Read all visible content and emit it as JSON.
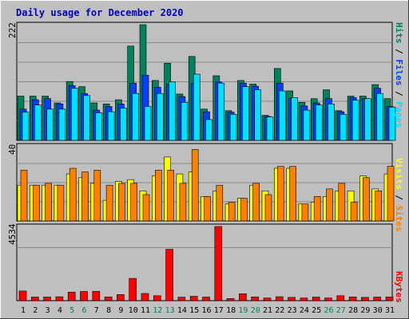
{
  "title": "Daily usage for December 2020",
  "colors": {
    "background": "#C0C0C0",
    "plot_bg": "#BFBFBF",
    "hits": "#00805C",
    "files": "#0040FF",
    "pages": "#00E0FF",
    "visits": "#FFFF00",
    "sites": "#FF8000",
    "kbytes": "#FF0000",
    "title": "#0000C0",
    "weekend_label": "#00805C"
  },
  "chart_data": [
    {
      "type": "bar",
      "panel": "hits-files-pages",
      "ymax_label": "222",
      "legend": [
        "Pages",
        "Files",
        "Hits"
      ],
      "categories": [
        "1",
        "2",
        "3",
        "4",
        "5",
        "6",
        "7",
        "8",
        "9",
        "10",
        "11",
        "12",
        "13",
        "14",
        "15",
        "16",
        "17",
        "18",
        "19",
        "20",
        "21",
        "22",
        "23",
        "24",
        "25",
        "26",
        "27",
        "28",
        "29",
        "30",
        "31"
      ],
      "weekend_days": [
        "5",
        "6",
        "12",
        "13",
        "19",
        "20",
        "26",
        "27"
      ],
      "series": [
        {
          "name": "Hits",
          "values": [
            85,
            85,
            85,
            72,
            113,
            103,
            72,
            70,
            78,
            181,
            222,
            115,
            148,
            89,
            161,
            60,
            124,
            57,
            115,
            108,
            48,
            138,
            95,
            73,
            80,
            97,
            57,
            85,
            85,
            107,
            80
          ]
        },
        {
          "name": "Files",
          "values": [
            60,
            78,
            80,
            70,
            105,
            90,
            58,
            65,
            70,
            110,
            125,
            102,
            108,
            84,
            110,
            55,
            112,
            54,
            110,
            104,
            46,
            110,
            80,
            66,
            72,
            80,
            55,
            82,
            80,
            100,
            65
          ]
        },
        {
          "name": "Pages",
          "values": [
            54,
            68,
            60,
            60,
            100,
            86,
            53,
            55,
            62,
            90,
            65,
            90,
            112,
            73,
            127,
            40,
            110,
            50,
            103,
            97,
            45,
            95,
            82,
            58,
            68,
            70,
            50,
            77,
            80,
            90,
            64
          ]
        }
      ]
    },
    {
      "type": "bar",
      "panel": "visits-sites",
      "ymax_label": "40",
      "legend": [
        "Sites",
        "Visits"
      ],
      "categories": [
        "1",
        "2",
        "3",
        "4",
        "5",
        "6",
        "7",
        "8",
        "9",
        "10",
        "11",
        "12",
        "13",
        "14",
        "15",
        "16",
        "17",
        "18",
        "19",
        "20",
        "21",
        "22",
        "23",
        "24",
        "25",
        "26",
        "27",
        "28",
        "29",
        "30",
        "31"
      ],
      "series": [
        {
          "name": "Visits",
          "values": [
            19,
            19,
            19,
            19,
            25,
            23,
            20,
            11,
            21,
            22,
            16,
            24,
            34,
            25,
            26,
            13,
            16,
            9,
            12,
            19,
            16,
            28,
            28,
            9,
            10,
            13,
            16,
            16,
            24,
            17,
            25
          ]
        },
        {
          "name": "Sites",
          "values": [
            27,
            19,
            20,
            19,
            28,
            26,
            27,
            19,
            20,
            20,
            14,
            27,
            27,
            20,
            38,
            13,
            19,
            10,
            12,
            20,
            14,
            29,
            29,
            9,
            13,
            17,
            20,
            10,
            23,
            16,
            29
          ]
        }
      ]
    },
    {
      "type": "bar",
      "panel": "kbytes",
      "ymax_label": "4534",
      "legend": [
        "KBytes"
      ],
      "categories": [
        "1",
        "2",
        "3",
        "4",
        "5",
        "6",
        "7",
        "8",
        "9",
        "10",
        "11",
        "12",
        "13",
        "14",
        "15",
        "16",
        "17",
        "18",
        "19",
        "20",
        "21",
        "22",
        "23",
        "24",
        "25",
        "26",
        "27",
        "28",
        "29",
        "30",
        "31"
      ],
      "series": [
        {
          "name": "KBytes",
          "values": [
            590,
            220,
            220,
            240,
            520,
            560,
            570,
            230,
            370,
            1360,
            440,
            300,
            3140,
            210,
            270,
            220,
            4534,
            130,
            420,
            230,
            160,
            240,
            200,
            160,
            220,
            160,
            300,
            230,
            200,
            220,
            230
          ]
        }
      ]
    }
  ]
}
